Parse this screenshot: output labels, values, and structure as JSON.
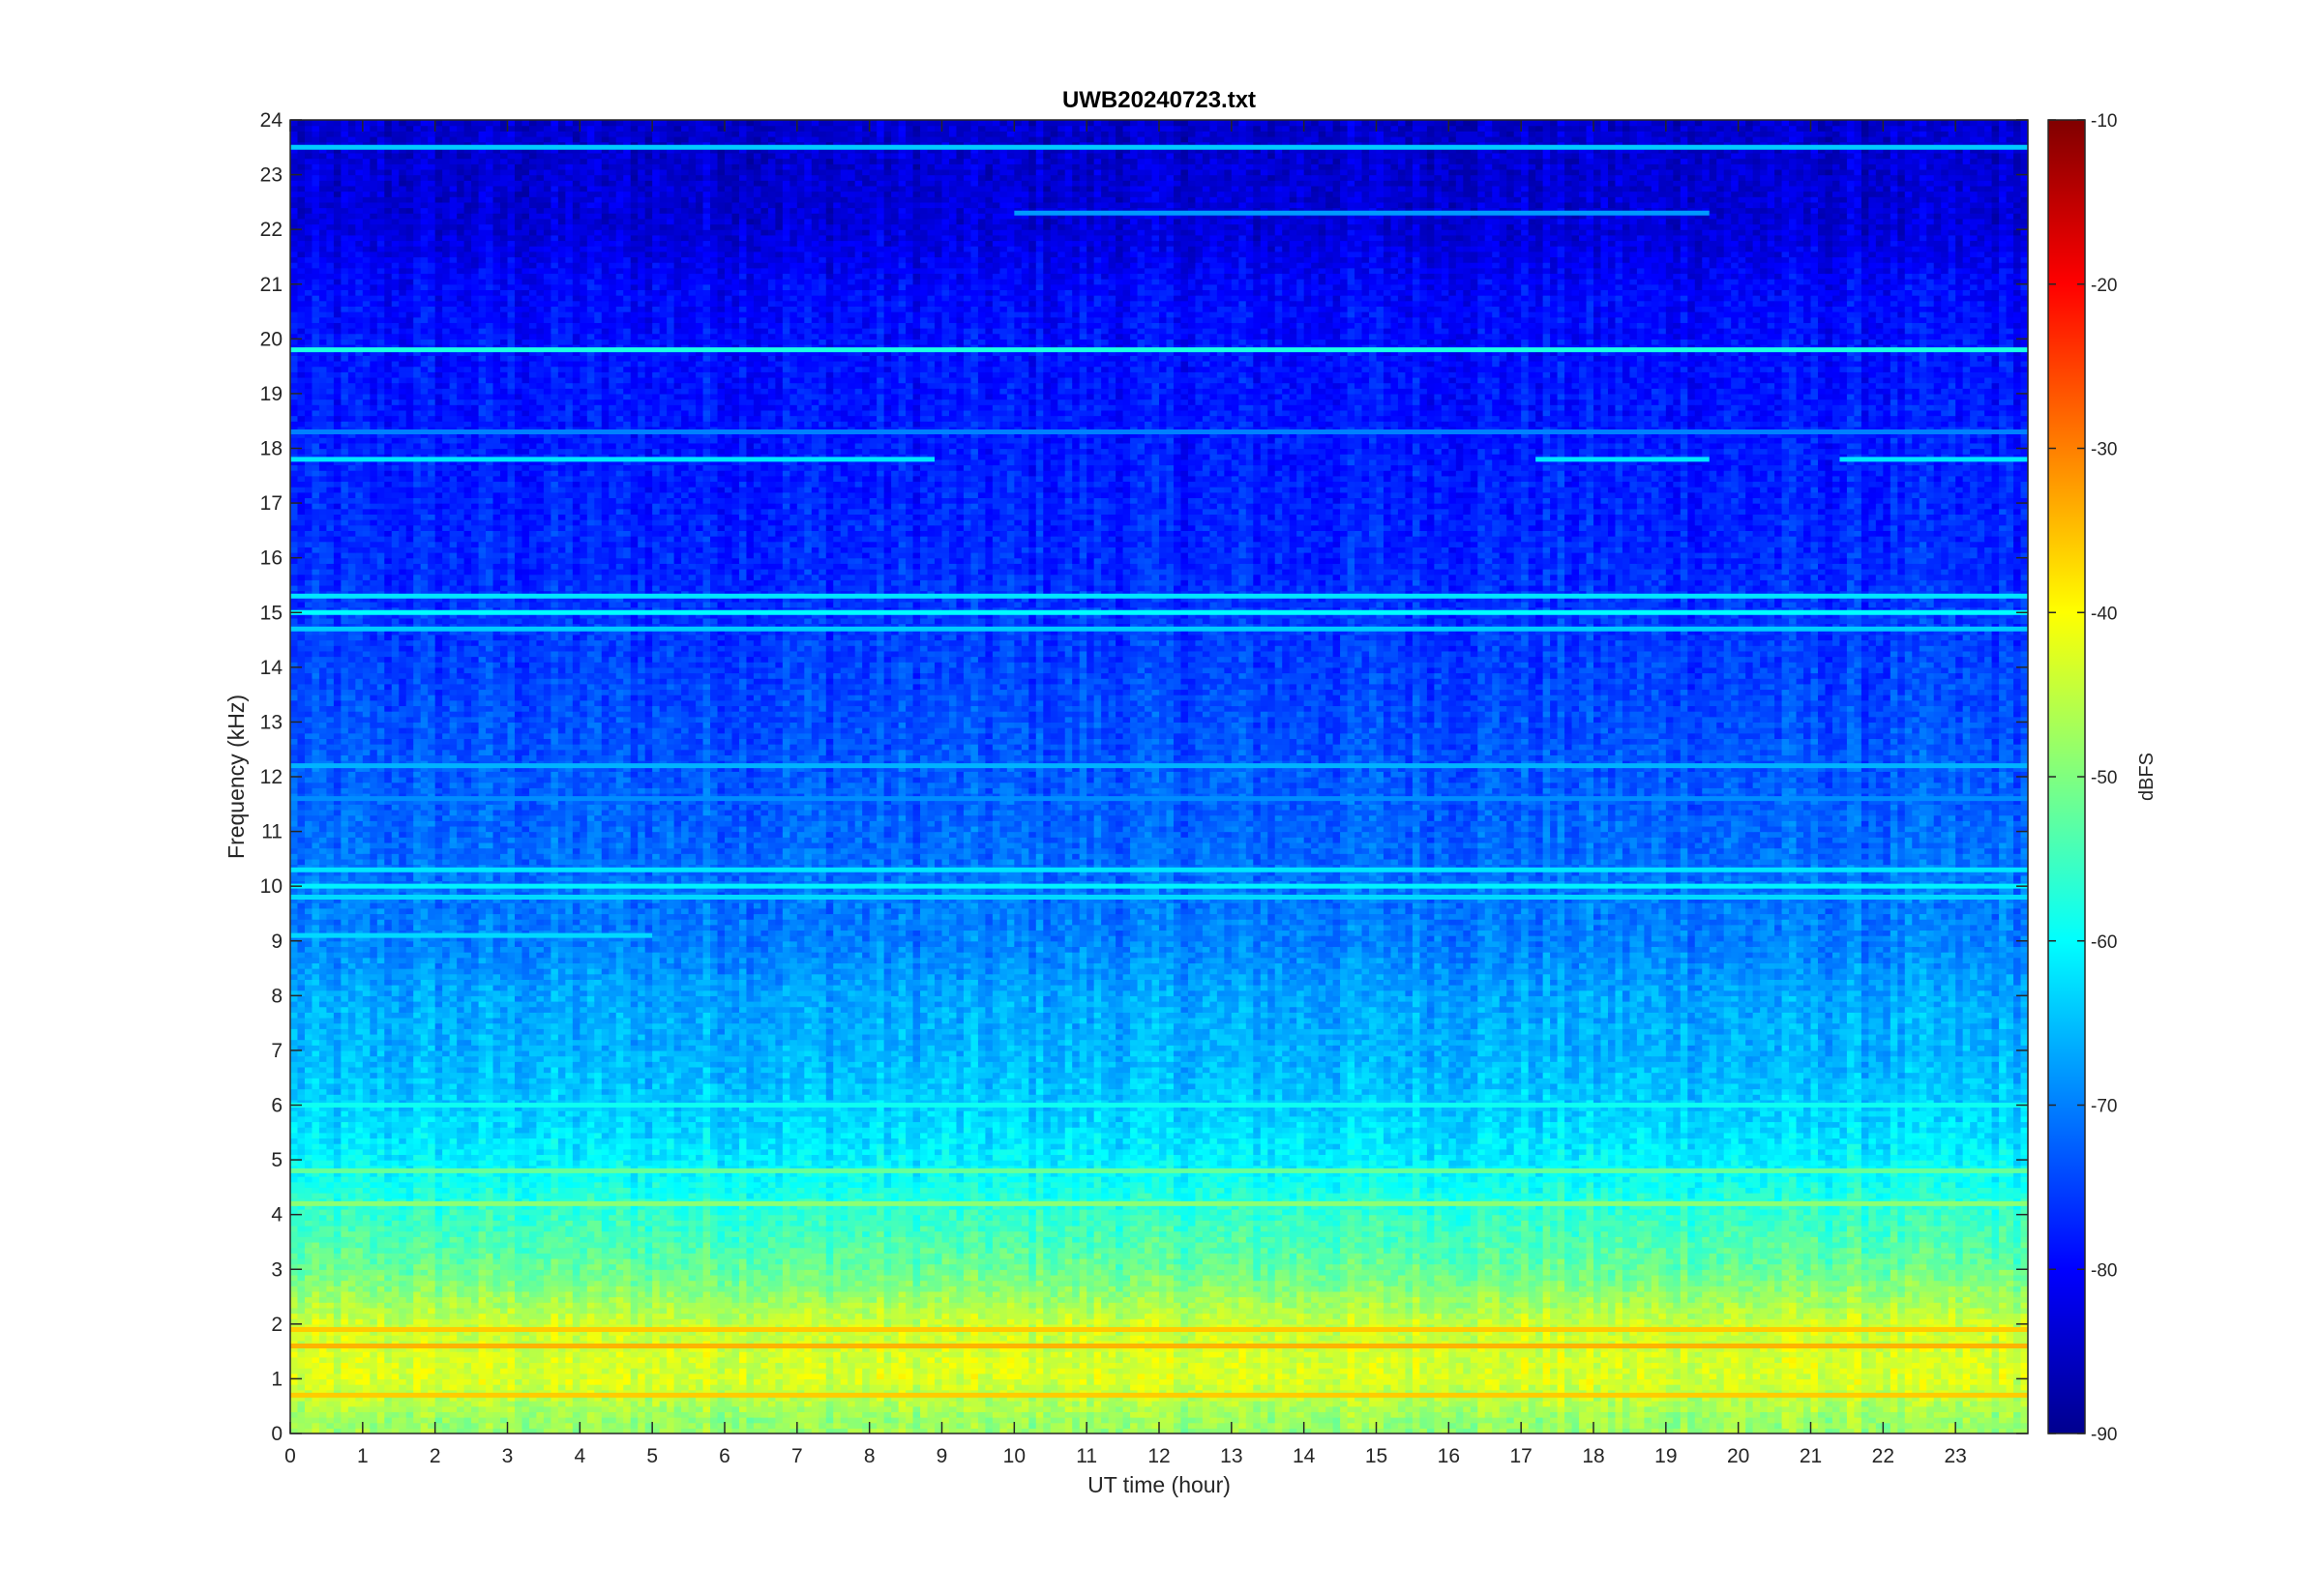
{
  "chart_data": {
    "type": "heatmap",
    "title": "UWB20240723.txt",
    "xlabel": "UT time (hour)",
    "ylabel": "Frequency (kHz)",
    "xlim": [
      0,
      24
    ],
    "ylim": [
      0,
      24
    ],
    "x_ticks": [
      "0",
      "1",
      "2",
      "3",
      "4",
      "5",
      "6",
      "7",
      "8",
      "9",
      "10",
      "11",
      "12",
      "13",
      "14",
      "15",
      "16",
      "17",
      "18",
      "19",
      "20",
      "21",
      "22",
      "23"
    ],
    "y_ticks": [
      "0",
      "1",
      "2",
      "3",
      "4",
      "5",
      "6",
      "7",
      "8",
      "9",
      "10",
      "11",
      "12",
      "13",
      "14",
      "15",
      "16",
      "17",
      "18",
      "19",
      "20",
      "21",
      "22",
      "23",
      "24"
    ],
    "colorbar": {
      "label": "dBFS",
      "range": [
        -90,
        -10
      ],
      "ticks": [
        "-90",
        "-80",
        "-70",
        "-60",
        "-50",
        "-40",
        "-30",
        "-20",
        "-10"
      ],
      "colormap": "jet"
    },
    "background_level_by_freq_khz": [
      {
        "freq": 0.25,
        "dbfs": -48
      },
      {
        "freq": 1.0,
        "dbfs": -43
      },
      {
        "freq": 2.0,
        "dbfs": -44
      },
      {
        "freq": 3.0,
        "dbfs": -52
      },
      {
        "freq": 4.0,
        "dbfs": -56
      },
      {
        "freq": 5.0,
        "dbfs": -61
      },
      {
        "freq": 6.0,
        "dbfs": -64
      },
      {
        "freq": 7.0,
        "dbfs": -66
      },
      {
        "freq": 8.0,
        "dbfs": -67
      },
      {
        "freq": 9.0,
        "dbfs": -70
      },
      {
        "freq": 10.0,
        "dbfs": -71
      },
      {
        "freq": 12.0,
        "dbfs": -73
      },
      {
        "freq": 14.0,
        "dbfs": -75
      },
      {
        "freq": 16.0,
        "dbfs": -77
      },
      {
        "freq": 18.0,
        "dbfs": -78
      },
      {
        "freq": 20.0,
        "dbfs": -79
      },
      {
        "freq": 21.0,
        "dbfs": -80
      },
      {
        "freq": 22.0,
        "dbfs": -83
      },
      {
        "freq": 24.0,
        "dbfs": -84
      }
    ],
    "tone_lines": [
      {
        "freq": 23.5,
        "dbfs": -64,
        "t_start": 0,
        "t_end": 24
      },
      {
        "freq": 22.3,
        "dbfs": -68,
        "t_start": 10,
        "t_end": 19.6
      },
      {
        "freq": 19.8,
        "dbfs": -58,
        "t_start": 0,
        "t_end": 24
      },
      {
        "freq": 18.3,
        "dbfs": -70,
        "t_start": 0,
        "t_end": 24
      },
      {
        "freq": 17.8,
        "dbfs": -62,
        "t_start": 0,
        "t_end": 8.9
      },
      {
        "freq": 17.8,
        "dbfs": -62,
        "t_start": 17.2,
        "t_end": 19.6
      },
      {
        "freq": 17.8,
        "dbfs": -62,
        "t_start": 21.4,
        "t_end": 24
      },
      {
        "freq": 15.3,
        "dbfs": -62,
        "t_start": 0,
        "t_end": 24
      },
      {
        "freq": 15.0,
        "dbfs": -60,
        "t_start": 0,
        "t_end": 24
      },
      {
        "freq": 14.7,
        "dbfs": -64,
        "t_start": 0,
        "t_end": 24
      },
      {
        "freq": 12.2,
        "dbfs": -66,
        "t_start": 0,
        "t_end": 24
      },
      {
        "freq": 11.6,
        "dbfs": -69,
        "t_start": 0,
        "t_end": 24
      },
      {
        "freq": 10.3,
        "dbfs": -62,
        "t_start": 0,
        "t_end": 24
      },
      {
        "freq": 10.0,
        "dbfs": -61,
        "t_start": 0,
        "t_end": 24
      },
      {
        "freq": 9.8,
        "dbfs": -63,
        "t_start": 0,
        "t_end": 24
      },
      {
        "freq": 9.1,
        "dbfs": -63,
        "t_start": 0,
        "t_end": 5
      },
      {
        "freq": 6.0,
        "dbfs": -59,
        "t_start": 0,
        "t_end": 24
      },
      {
        "freq": 4.8,
        "dbfs": -52,
        "t_start": 0,
        "t_end": 24
      },
      {
        "freq": 4.2,
        "dbfs": -49,
        "t_start": 0,
        "t_end": 24
      },
      {
        "freq": 1.9,
        "dbfs": -36,
        "t_start": 0,
        "t_end": 24
      },
      {
        "freq": 1.6,
        "dbfs": -34,
        "t_start": 0,
        "t_end": 24
      },
      {
        "freq": 0.7,
        "dbfs": -36,
        "t_start": 0,
        "t_end": 24
      }
    ]
  }
}
